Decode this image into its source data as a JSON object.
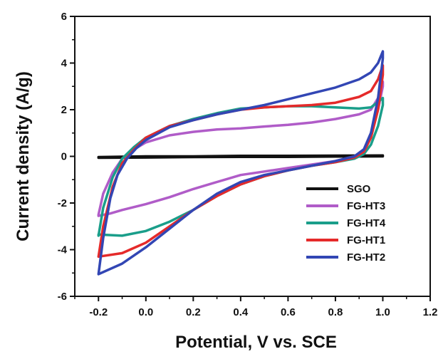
{
  "chart_data": {
    "type": "line",
    "title": "",
    "xlabel": "Potential, V vs. SCE",
    "ylabel": "Current density (A/g)",
    "xlim": [
      -0.3,
      1.2
    ],
    "ylim": [
      -6,
      6
    ],
    "xticks": [
      -0.2,
      0.0,
      0.2,
      0.4,
      0.6,
      0.8,
      1.0,
      1.2
    ],
    "xtick_labels": [
      "-0.2",
      "0.0",
      "0.2",
      "0.4",
      "0.6",
      "0.8",
      "1.0",
      "1.2"
    ],
    "yticks": [
      -6,
      -4,
      -2,
      0,
      2,
      4,
      6
    ],
    "ytick_labels": [
      "-6",
      "-4",
      "-2",
      "0",
      "2",
      "4",
      "6"
    ],
    "grid": false,
    "legend_position": "bottom-right",
    "series": [
      {
        "name": "SGO",
        "color": "#111111",
        "x": [
          -0.2,
          0.0,
          0.2,
          0.4,
          0.6,
          0.8,
          1.0,
          1.0,
          0.8,
          0.6,
          0.4,
          0.2,
          0.0,
          -0.2
        ],
        "y": [
          -0.03,
          0.0,
          0.0,
          0.02,
          0.02,
          0.03,
          0.04,
          0.0,
          -0.01,
          -0.02,
          -0.02,
          -0.03,
          -0.05,
          -0.06
        ]
      },
      {
        "name": "FG-HT3",
        "color": "#b05cc8",
        "x": [
          -0.2,
          -0.18,
          -0.14,
          -0.1,
          -0.05,
          0.0,
          0.1,
          0.2,
          0.3,
          0.4,
          0.5,
          0.6,
          0.7,
          0.8,
          0.9,
          0.95,
          0.98,
          1.0,
          1.0,
          0.98,
          0.95,
          0.92,
          0.88,
          0.8,
          0.7,
          0.6,
          0.5,
          0.4,
          0.3,
          0.2,
          0.1,
          0.0,
          -0.1,
          -0.15,
          -0.2
        ],
        "y": [
          -2.5,
          -1.6,
          -0.7,
          -0.1,
          0.3,
          0.6,
          0.9,
          1.05,
          1.15,
          1.2,
          1.28,
          1.35,
          1.45,
          1.6,
          1.8,
          2.0,
          2.5,
          3.2,
          3.0,
          2.0,
          1.0,
          0.3,
          0.0,
          -0.2,
          -0.35,
          -0.5,
          -0.65,
          -0.8,
          -1.1,
          -1.4,
          -1.75,
          -2.05,
          -2.3,
          -2.45,
          -2.55
        ]
      },
      {
        "name": "FG-HT4",
        "color": "#1a9e8a",
        "x": [
          -0.2,
          -0.18,
          -0.14,
          -0.1,
          -0.05,
          0.0,
          0.1,
          0.2,
          0.3,
          0.4,
          0.5,
          0.6,
          0.7,
          0.8,
          0.9,
          0.95,
          1.0,
          1.0,
          0.98,
          0.95,
          0.92,
          0.88,
          0.8,
          0.7,
          0.6,
          0.5,
          0.4,
          0.3,
          0.2,
          0.1,
          0.0,
          -0.1,
          -0.2
        ],
        "y": [
          -3.4,
          -2.2,
          -0.9,
          -0.1,
          0.4,
          0.8,
          1.3,
          1.6,
          1.85,
          2.05,
          2.1,
          2.15,
          2.15,
          2.1,
          2.05,
          2.1,
          2.5,
          2.2,
          1.3,
          0.5,
          0.1,
          -0.1,
          -0.25,
          -0.4,
          -0.6,
          -0.85,
          -1.2,
          -1.7,
          -2.3,
          -2.8,
          -3.2,
          -3.4,
          -3.35
        ]
      },
      {
        "name": "FG-HT1",
        "color": "#e52a2a",
        "x": [
          -0.2,
          -0.18,
          -0.14,
          -0.1,
          -0.05,
          0.0,
          0.1,
          0.2,
          0.3,
          0.4,
          0.5,
          0.6,
          0.7,
          0.8,
          0.9,
          0.95,
          0.98,
          1.0,
          1.0,
          0.98,
          0.95,
          0.92,
          0.88,
          0.8,
          0.7,
          0.6,
          0.5,
          0.4,
          0.3,
          0.2,
          0.1,
          0.0,
          -0.1,
          -0.2
        ],
        "y": [
          -4.3,
          -3.0,
          -1.3,
          -0.3,
          0.3,
          0.8,
          1.3,
          1.55,
          1.8,
          2.0,
          2.1,
          2.15,
          2.2,
          2.3,
          2.55,
          2.8,
          3.3,
          3.9,
          3.5,
          2.0,
          0.8,
          0.2,
          -0.05,
          -0.25,
          -0.4,
          -0.6,
          -0.85,
          -1.2,
          -1.7,
          -2.3,
          -3.0,
          -3.7,
          -4.15,
          -4.3
        ]
      },
      {
        "name": "FG-HT2",
        "color": "#3246b4",
        "x": [
          -0.2,
          -0.18,
          -0.15,
          -0.12,
          -0.08,
          -0.04,
          0.0,
          0.1,
          0.2,
          0.3,
          0.4,
          0.5,
          0.6,
          0.7,
          0.8,
          0.9,
          0.95,
          0.98,
          1.0,
          1.0,
          0.98,
          0.95,
          0.92,
          0.88,
          0.8,
          0.7,
          0.6,
          0.5,
          0.4,
          0.3,
          0.2,
          0.1,
          0.0,
          -0.1,
          -0.2
        ],
        "y": [
          -5.05,
          -3.5,
          -1.8,
          -0.8,
          -0.1,
          0.35,
          0.7,
          1.25,
          1.55,
          1.8,
          2.0,
          2.2,
          2.45,
          2.7,
          2.95,
          3.3,
          3.6,
          4.0,
          4.5,
          4.2,
          2.5,
          1.0,
          0.3,
          0.0,
          -0.2,
          -0.4,
          -0.6,
          -0.8,
          -1.1,
          -1.6,
          -2.3,
          -3.1,
          -3.9,
          -4.6,
          -5.05
        ]
      }
    ]
  }
}
